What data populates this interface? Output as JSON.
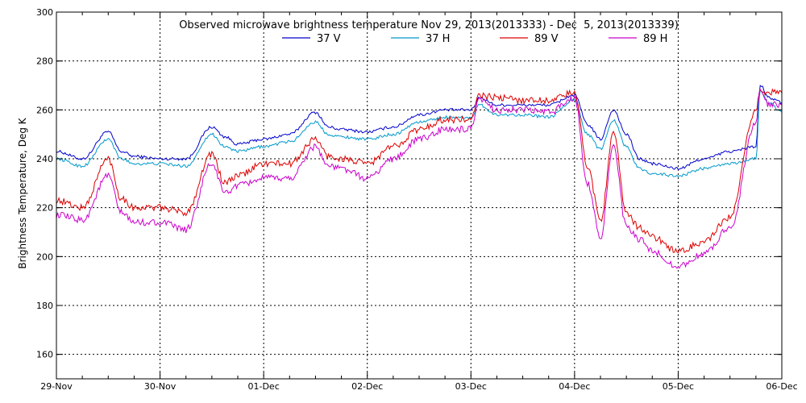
{
  "chart_data": {
    "type": "line",
    "title": "Observed microwave brightness temperature Nov 29, 2013(2013333) - Dec  5, 2013(2013339)",
    "xlabel": "",
    "ylabel": "Brightness Temperature, Deg K",
    "xlim": [
      "2013-11-29T00:00",
      "2013-12-06T00:00"
    ],
    "ylim": [
      150,
      300
    ],
    "x_tick_labels": [
      "29-Nov",
      "30-Nov",
      "01-Dec",
      "02-Dec",
      "03-Dec",
      "04-Dec",
      "05-Dec",
      "06-Dec"
    ],
    "y_ticks": [
      160,
      180,
      200,
      220,
      240,
      260,
      280,
      300
    ],
    "y_tick_labels": [
      "160",
      "180",
      "200",
      "220",
      "240",
      "260",
      "280",
      "300"
    ],
    "grid": true,
    "legend": "top-center",
    "x": [
      "2013-11-29T00:00",
      "2013-11-29T06:00",
      "2013-11-29T12:00",
      "2013-11-29T15:00",
      "2013-11-29T18:00",
      "2013-11-30T00:00",
      "2013-11-30T06:00",
      "2013-11-30T12:00",
      "2013-11-30T15:00",
      "2013-11-30T18:00",
      "2013-12-01T00:00",
      "2013-12-01T06:00",
      "2013-12-01T12:00",
      "2013-12-01T15:00",
      "2013-12-01T18:00",
      "2013-12-02T00:00",
      "2013-12-02T06:00",
      "2013-12-02T12:00",
      "2013-12-02T18:00",
      "2013-12-03T00:00",
      "2013-12-03T02:00",
      "2013-12-03T06:00",
      "2013-12-03T12:00",
      "2013-12-03T18:00",
      "2013-12-04T00:00",
      "2013-12-04T03:00",
      "2013-12-04T06:00",
      "2013-12-04T09:00",
      "2013-12-04T12:00",
      "2013-12-04T15:00",
      "2013-12-04T18:00",
      "2013-12-05T00:00",
      "2013-12-05T06:00",
      "2013-12-05T12:00",
      "2013-12-05T18:00",
      "2013-12-05T19:00",
      "2013-12-05T21:00",
      "2013-12-06T00:00"
    ],
    "series": [
      {
        "name": "37 V",
        "color": "#0000cc",
        "values": [
          243,
          240,
          251,
          243,
          241,
          240,
          240,
          253,
          249,
          246,
          248,
          250,
          259,
          253,
          252,
          251,
          253,
          258,
          260,
          260,
          265,
          262,
          262,
          262,
          266,
          254,
          248,
          260,
          250,
          240,
          238,
          236,
          240,
          243,
          245,
          270,
          265,
          263
        ]
      },
      {
        "name": "37 H",
        "color": "#0099cc",
        "values": [
          240,
          237,
          248,
          240,
          238,
          238,
          237,
          250,
          245,
          243,
          245,
          247,
          255,
          250,
          249,
          248,
          250,
          255,
          257,
          257,
          262,
          258,
          258,
          257,
          264,
          250,
          244,
          256,
          245,
          236,
          234,
          233,
          236,
          238,
          240,
          268,
          263,
          259
        ]
      },
      {
        "name": "89 V",
        "color": "#dd0000",
        "values": [
          223,
          220,
          240,
          224,
          220,
          220,
          218,
          242,
          230,
          233,
          238,
          238,
          248,
          241,
          240,
          238,
          245,
          252,
          256,
          256,
          266,
          265,
          264,
          264,
          267,
          237,
          215,
          250,
          218,
          212,
          208,
          202,
          206,
          216,
          260,
          268,
          267,
          267
        ]
      },
      {
        "name": "89 H",
        "color": "#cc00cc",
        "values": [
          217,
          215,
          233,
          218,
          214,
          214,
          211,
          238,
          226,
          229,
          232,
          232,
          245,
          237,
          236,
          232,
          240,
          248,
          252,
          252,
          264,
          260,
          260,
          259,
          265,
          230,
          208,
          245,
          212,
          207,
          202,
          196,
          201,
          212,
          255,
          268,
          262,
          262
        ]
      }
    ]
  }
}
